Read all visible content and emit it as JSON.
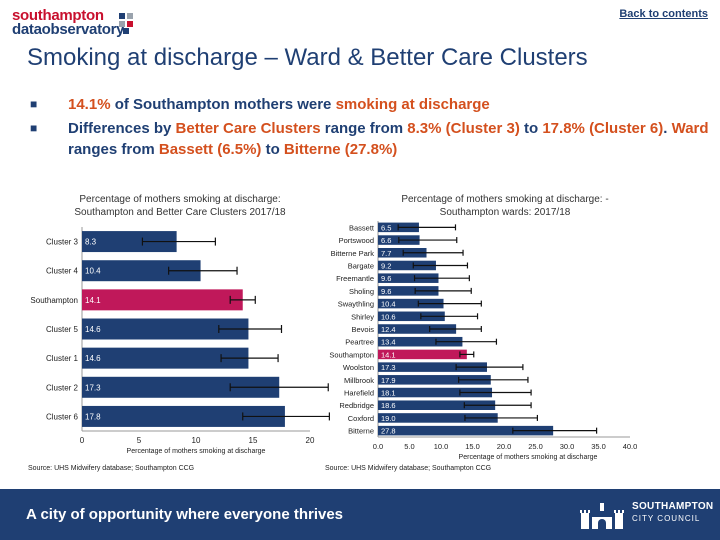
{
  "header": {
    "logo_line1": "southampton",
    "logo_line2": "dataobservatory",
    "back_link": "Back to contents"
  },
  "title": "Smoking at discharge – Ward & Better Care Clusters",
  "bullets": [
    [
      "14.1%",
      " of Southampton mothers were ",
      "smoking at discharge",
      ""
    ],
    [
      "",
      "Differences by ",
      "Better Care Clusters",
      " range from ",
      "8.3% (Cluster 3)",
      " to ",
      "17.8%",
      " ",
      "(Cluster 6)",
      ". ",
      "Ward",
      " ranges from ",
      "Bassett (6.5%)",
      " to ",
      "Bitterne (27.8%)"
    ]
  ],
  "colors": {
    "bar": "#1f3f73",
    "highlight": "#c0185a",
    "accent": "#d4501e",
    "footer": "#1f3f73"
  },
  "chart_data": [
    {
      "type": "bar",
      "orientation": "horizontal",
      "title_line1": "Percentage of mothers smoking at discharge:",
      "title_line2": "Southampton and Better Care Clusters 2017/18",
      "xlabel": "Percentage of mothers smoking at discharge",
      "xlim": [
        0,
        20
      ],
      "xticks": [
        0,
        5,
        10,
        15,
        20
      ],
      "xtick_labels": [
        "0",
        "5",
        "10",
        "15",
        "20"
      ],
      "categories": [
        "Cluster 3",
        "Cluster 4",
        "Southampton",
        "Cluster 5",
        "Cluster 1",
        "Cluster 2",
        "Cluster 6"
      ],
      "values": [
        8.3,
        10.4,
        14.1,
        14.6,
        14.6,
        17.3,
        17.8
      ],
      "data_labels": [
        "8.3",
        "10.4",
        "14.1",
        "14.6",
        "14.6",
        "17.3",
        "17.8"
      ],
      "ci_low": [
        5.3,
        7.6,
        13.0,
        12.0,
        12.2,
        13.0,
        14.1
      ],
      "ci_high": [
        11.7,
        13.6,
        15.2,
        17.5,
        17.2,
        21.6,
        21.7
      ],
      "highlight": "Southampton",
      "source": "Source: UHS Midwifery database; Southampton CCG"
    },
    {
      "type": "bar",
      "orientation": "horizontal",
      "title_line1": "Percentage of mothers smoking at discharge: -",
      "title_line2": "Southampton wards: 2017/18",
      "xlabel": "Percentage of mothers smoking at discharge",
      "xlim": [
        0,
        40
      ],
      "xticks": [
        0,
        5,
        10,
        15,
        20,
        25,
        30,
        35,
        40
      ],
      "xtick_labels": [
        "0.0",
        "5.0",
        "10.0",
        "15.0",
        "20.0",
        "25.0",
        "30.0",
        "35.0",
        "40.0"
      ],
      "categories": [
        "Bassett",
        "Portswood",
        "Bitterne Park",
        "Bargate",
        "Freemantle",
        "Sholing",
        "Swaythling",
        "Shirley",
        "Bevois",
        "Peartree",
        "Southampton",
        "Woolston",
        "Millbrook",
        "Harefield",
        "Redbridge",
        "Coxford",
        "Bitterne"
      ],
      "values": [
        6.5,
        6.6,
        7.7,
        9.2,
        9.6,
        9.6,
        10.4,
        10.6,
        12.4,
        13.4,
        14.1,
        17.3,
        17.9,
        18.1,
        18.6,
        19.0,
        27.8
      ],
      "data_labels": [
        "6.5",
        "6.6",
        "7.7",
        "9.2",
        "9.6",
        "9.6",
        "10.4",
        "10.6",
        "12.4",
        "13.4",
        "14.1",
        "17.3",
        "17.9",
        "18.1",
        "18.6",
        "19.0",
        "27.8"
      ],
      "ci_low": [
        3.2,
        3.3,
        4.0,
        5.6,
        5.8,
        5.9,
        6.4,
        6.8,
        8.2,
        9.2,
        13.0,
        12.4,
        12.8,
        13.0,
        13.7,
        13.8,
        21.4
      ],
      "ci_high": [
        12.3,
        12.5,
        13.5,
        14.2,
        14.5,
        14.8,
        16.4,
        15.8,
        16.4,
        18.8,
        15.2,
        23.0,
        23.8,
        24.3,
        24.3,
        25.3,
        34.7
      ],
      "highlight": "Southampton",
      "source": "Source: UHS Midwifery database; Southampton CCG"
    }
  ],
  "footer": {
    "tagline": "A city of opportunity where everyone thrives",
    "council_line1": "SOUTHAMPTON",
    "council_line2": "CITY COUNCIL"
  }
}
